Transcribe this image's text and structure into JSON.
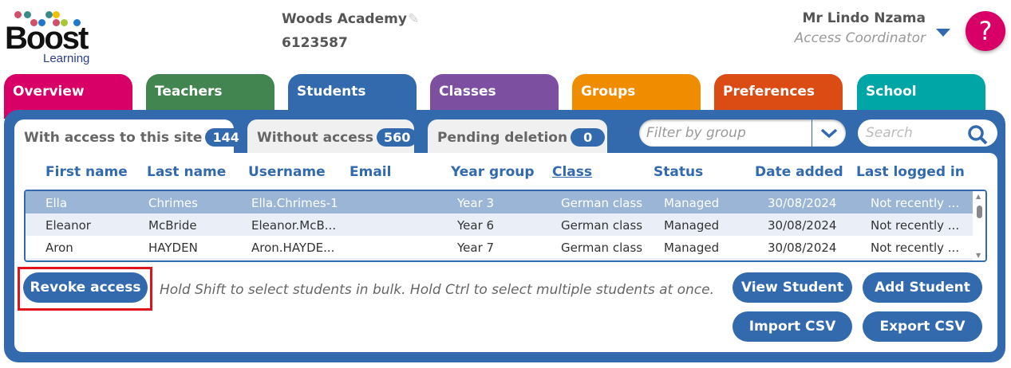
{
  "header": {
    "logo_text": "Boost",
    "logo_sub": "Learning",
    "school_name": "Woods Academy",
    "school_code": "6123587",
    "user_name": "Mr Lindo Nzama",
    "user_role": "Access Coordinator",
    "help_label": "?"
  },
  "tabs": [
    {
      "label": "Overview",
      "color": "#d80066"
    },
    {
      "label": "Teachers",
      "color": "#438550"
    },
    {
      "label": "Students",
      "color": "#326aad"
    },
    {
      "label": "Classes",
      "color": "#7d4fa0"
    },
    {
      "label": "Groups",
      "color": "#ef8c00"
    },
    {
      "label": "Preferences",
      "color": "#da4c14"
    },
    {
      "label": "School",
      "color": "#00a6a6"
    }
  ],
  "subtabs": [
    {
      "label": "With access to this site",
      "count": "144"
    },
    {
      "label": "Without access",
      "count": "560"
    },
    {
      "label": "Pending deletion",
      "count": "0"
    }
  ],
  "filter": {
    "placeholder": "Filter by group"
  },
  "search": {
    "placeholder": "Search"
  },
  "columns": [
    "First name",
    "Last name",
    "Username",
    "Email",
    "Year group",
    "Class",
    "Status",
    "Date added",
    "Last logged in"
  ],
  "rows": [
    [
      "Ella",
      "Chrimes",
      "Ella.Chrimes-1",
      "",
      "Year 3",
      "German class",
      "Managed",
      "30/08/2024",
      "Not recently ..."
    ],
    [
      "Eleanor",
      "McBride",
      "Eleanor.McB...",
      "",
      "Year 6",
      "German class",
      "Managed",
      "30/08/2024",
      "Not recently ..."
    ],
    [
      "Aron",
      "HAYDEN",
      "Aron.HAYDE...",
      "",
      "Year 7",
      "German class",
      "Managed",
      "30/08/2024",
      "Not recently ..."
    ]
  ],
  "actions": {
    "revoke": "Revoke access",
    "hint": "Hold Shift to select students in bulk. Hold Ctrl to select multiple students at once.",
    "view": "View Student",
    "add": "Add Student",
    "import": "Import CSV",
    "export": "Export CSV"
  }
}
